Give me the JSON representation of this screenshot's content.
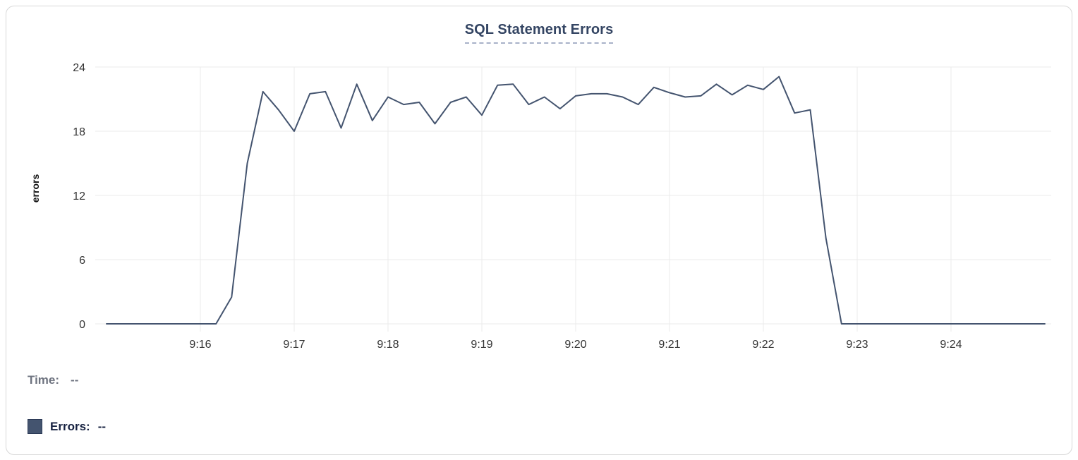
{
  "chart_data": {
    "type": "line",
    "title": "SQL Statement Errors",
    "ylabel": "errors",
    "xlabel": "",
    "ylim": [
      0,
      24
    ],
    "y_axis_labels": [
      0,
      6,
      12,
      18,
      24
    ],
    "x_axis_labels": [
      "9:16",
      "9:17",
      "9:18",
      "9:19",
      "9:20",
      "9:21",
      "9:22",
      "9:23",
      "9:24"
    ],
    "grid": true,
    "legend_position": "bottom-left",
    "line_color": "#44546F",
    "series": [
      {
        "name": "Errors",
        "times": [
          "9:15:00",
          "9:15:10",
          "9:15:20",
          "9:15:30",
          "9:15:40",
          "9:15:50",
          "9:16:00",
          "9:16:10",
          "9:16:20",
          "9:16:30",
          "9:16:40",
          "9:16:50",
          "9:17:00",
          "9:17:10",
          "9:17:20",
          "9:17:30",
          "9:17:40",
          "9:17:50",
          "9:18:00",
          "9:18:10",
          "9:18:20",
          "9:18:30",
          "9:18:40",
          "9:18:50",
          "9:19:00",
          "9:19:10",
          "9:19:20",
          "9:19:30",
          "9:19:40",
          "9:19:50",
          "9:20:00",
          "9:20:10",
          "9:20:20",
          "9:20:30",
          "9:20:40",
          "9:20:50",
          "9:21:00",
          "9:21:10",
          "9:21:20",
          "9:21:30",
          "9:21:40",
          "9:21:50",
          "9:22:00",
          "9:22:10",
          "9:22:20",
          "9:22:30",
          "9:22:40",
          "9:22:50",
          "9:23:00",
          "9:23:10",
          "9:23:20",
          "9:23:30",
          "9:23:40",
          "9:23:50",
          "9:24:00",
          "9:24:10",
          "9:24:20",
          "9:24:30",
          "9:24:40",
          "9:24:50",
          "9:25:00"
        ],
        "values": [
          0,
          0,
          0,
          0,
          0,
          0,
          0,
          0,
          2.5,
          15,
          21.7,
          20,
          18,
          21.5,
          21.7,
          18.3,
          22.4,
          19,
          21.2,
          20.5,
          20.7,
          18.7,
          20.7,
          21.2,
          19.5,
          22.3,
          22.4,
          20.5,
          21.2,
          20.1,
          21.3,
          21.5,
          21.5,
          21.2,
          20.5,
          22.1,
          21.6,
          21.2,
          21.3,
          22.4,
          21.4,
          22.3,
          21.9,
          23.1,
          19.7,
          20,
          8,
          0,
          0,
          0,
          0,
          0,
          0,
          0,
          0,
          0,
          0,
          0,
          0,
          0,
          0
        ]
      }
    ]
  },
  "readout": {
    "time_label": "Time:",
    "time_value": "--",
    "errors_label": "Errors:",
    "errors_value": "--"
  },
  "colors": {
    "line": "#44546F",
    "title": "#344563",
    "title_underline": "#a8b2c9",
    "axis_text": "#333333",
    "grid": "#ebebeb",
    "time_text": "#6f7480",
    "errors_text": "#172241",
    "card_border": "#d7d7d7"
  }
}
